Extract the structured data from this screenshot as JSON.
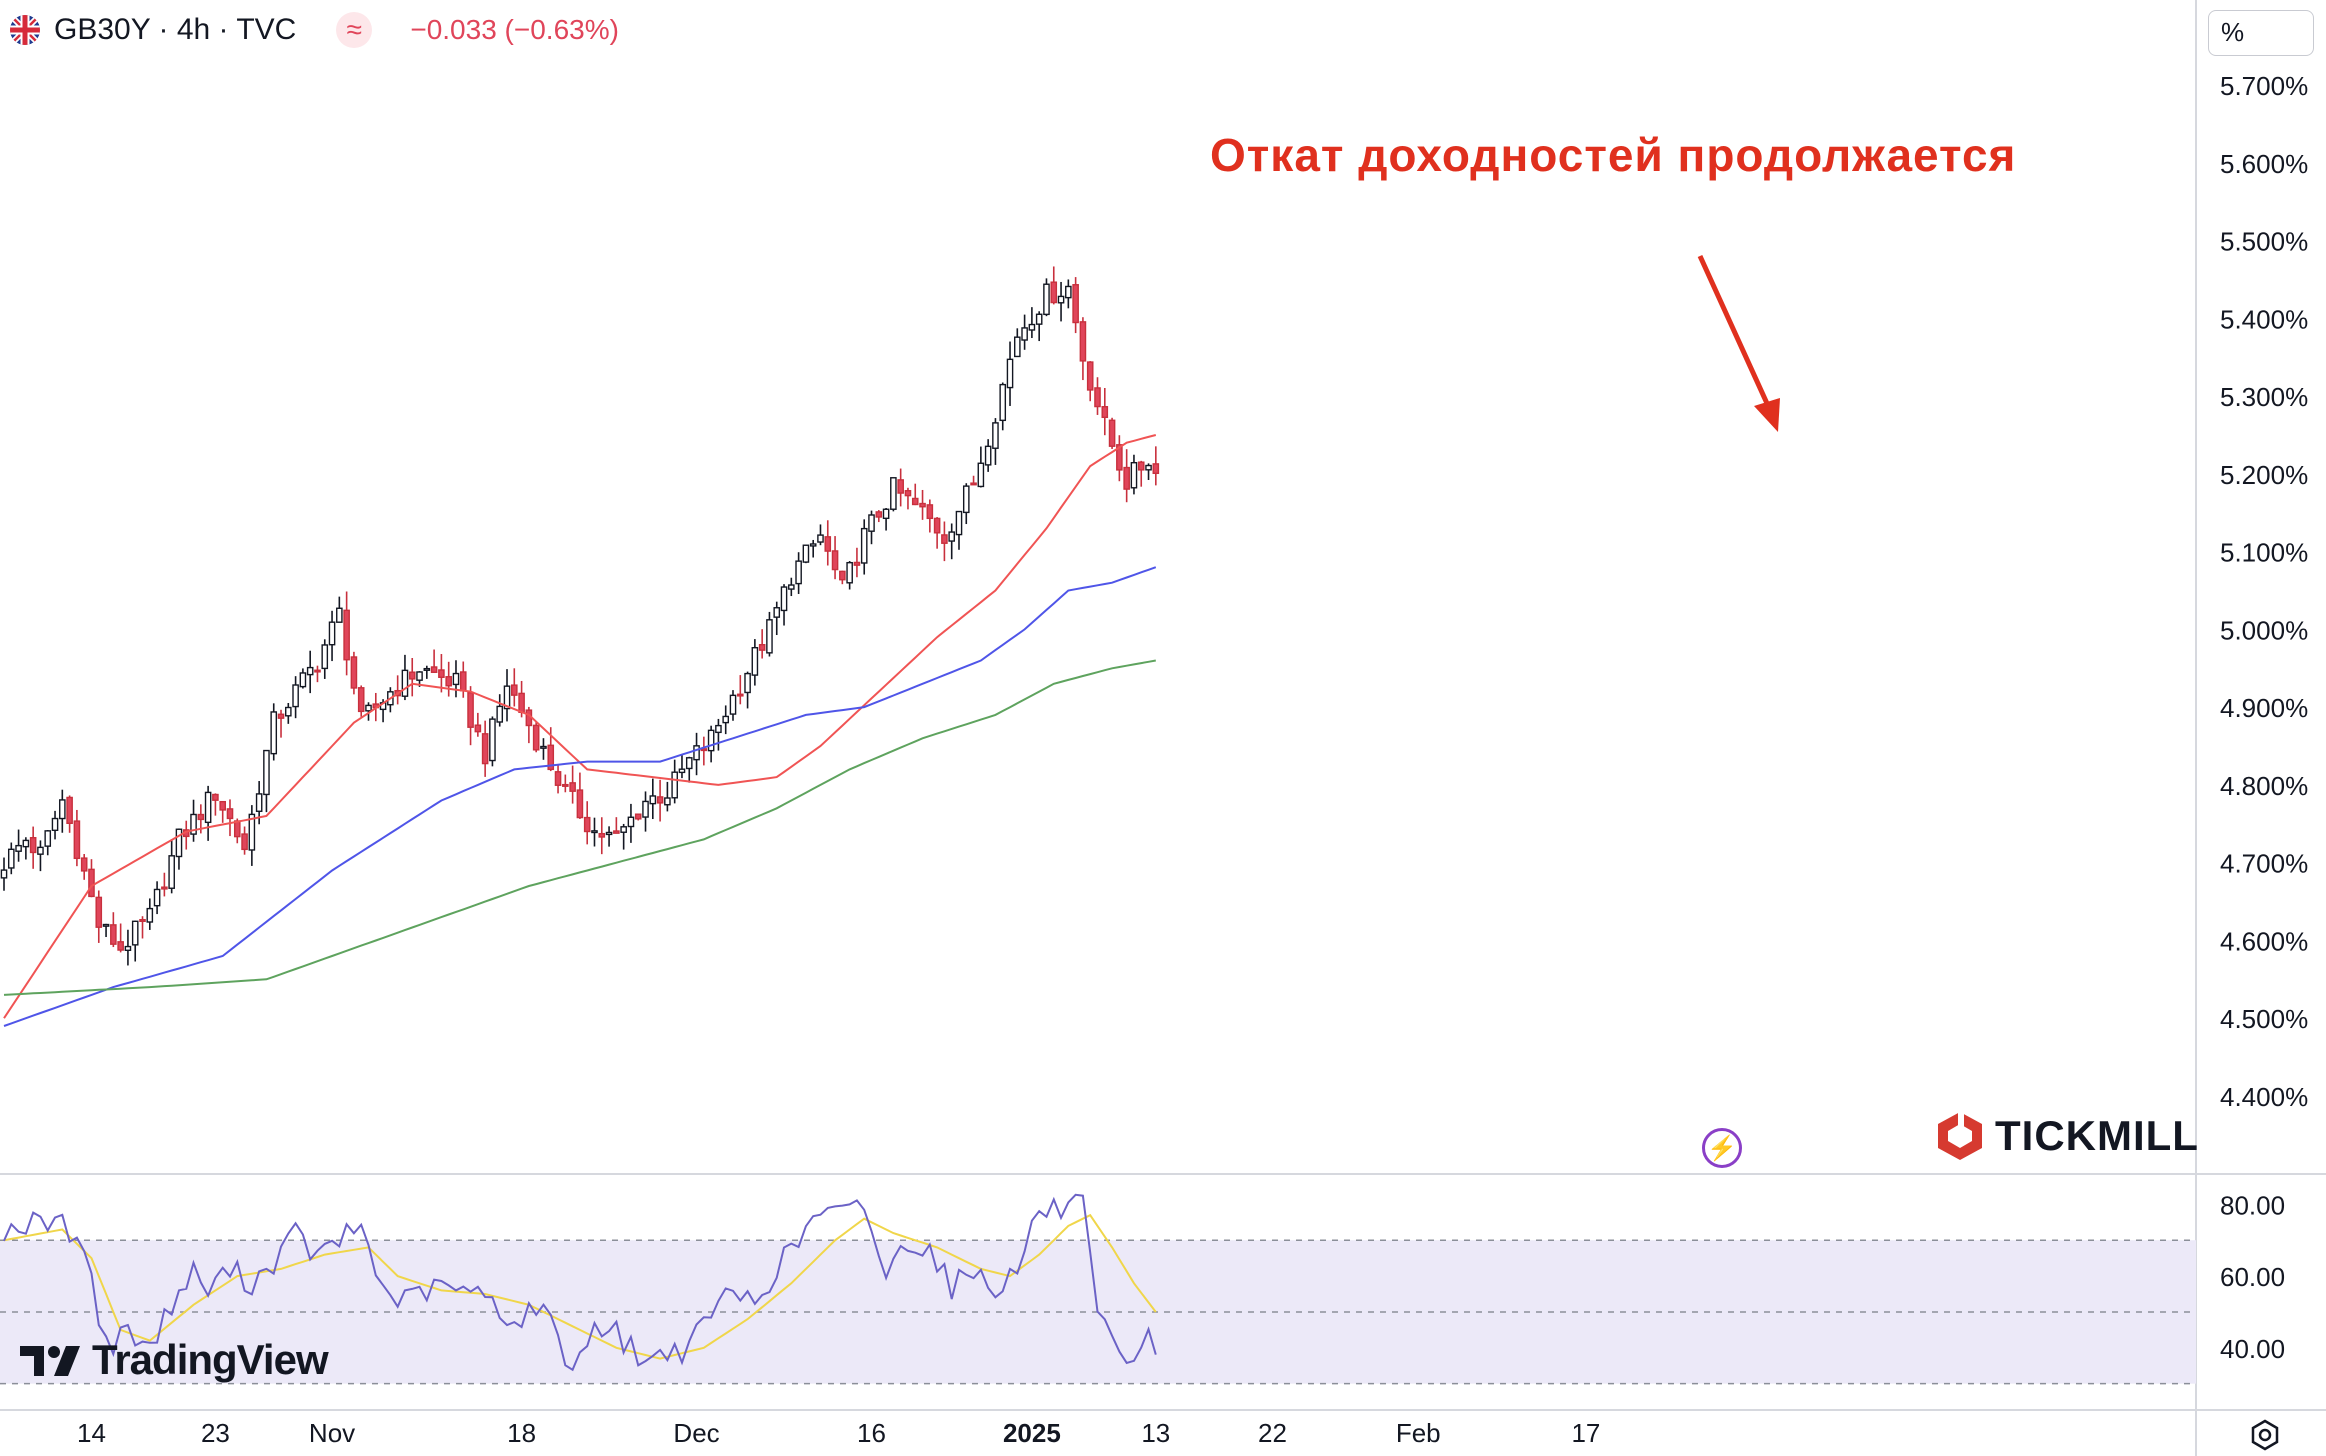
{
  "header": {
    "symbol": "GB30Y · 4h · TVC",
    "indicator_icon": "approx-icon",
    "change": "−0.033 (−0.63%)",
    "flag_icon": "uk-flag-icon",
    "down_color": "#e0455a",
    "up_color": "#131722"
  },
  "scale_button": "%",
  "annotation": "Откат доходностей продолжается",
  "watermarks": {
    "tradingview": "TradingView",
    "tickmill": "TICKMILL"
  },
  "lightning_icon": "lightning-icon",
  "settings_icon": "gear-icon",
  "chart_data": {
    "type": "candlestick",
    "title": "",
    "x_ticks": [
      "14",
      "23",
      "Nov",
      "18",
      "Dec",
      "16",
      "2025",
      "13",
      "22",
      "Feb",
      "17"
    ],
    "y_ticks": [
      "4.400%",
      "4.500%",
      "4.600%",
      "4.700%",
      "4.800%",
      "4.900%",
      "5.000%",
      "5.100%",
      "5.200%",
      "5.300%",
      "5.400%",
      "5.500%",
      "5.600%",
      "5.700%"
    ],
    "ylim": [
      4.32,
      5.75
    ],
    "close_path": [
      [
        0,
        4.7
      ],
      [
        3,
        4.73
      ],
      [
        5,
        4.71
      ],
      [
        8,
        4.78
      ],
      [
        10,
        4.72
      ],
      [
        13,
        4.62
      ],
      [
        16,
        4.59
      ],
      [
        20,
        4.63
      ],
      [
        24,
        4.73
      ],
      [
        29,
        4.79
      ],
      [
        33,
        4.72
      ],
      [
        37,
        4.88
      ],
      [
        40,
        4.92
      ],
      [
        43,
        4.96
      ],
      [
        46,
        5.02
      ],
      [
        49,
        4.88
      ],
      [
        53,
        4.92
      ],
      [
        57,
        4.95
      ],
      [
        62,
        4.93
      ],
      [
        66,
        4.84
      ],
      [
        69,
        4.93
      ],
      [
        73,
        4.86
      ],
      [
        77,
        4.79
      ],
      [
        81,
        4.74
      ],
      [
        84,
        4.73
      ],
      [
        88,
        4.78
      ],
      [
        91,
        4.79
      ],
      [
        94,
        4.83
      ],
      [
        97,
        4.86
      ],
      [
        101,
        4.93
      ],
      [
        105,
        5.0
      ],
      [
        108,
        5.07
      ],
      [
        112,
        5.12
      ],
      [
        115,
        5.05
      ],
      [
        118,
        5.12
      ],
      [
        122,
        5.18
      ],
      [
        126,
        5.15
      ],
      [
        129,
        5.12
      ],
      [
        133,
        5.19
      ],
      [
        136,
        5.28
      ],
      [
        139,
        5.38
      ],
      [
        143,
        5.43
      ],
      [
        146,
        5.44
      ],
      [
        148,
        5.35
      ],
      [
        151,
        5.26
      ],
      [
        154,
        5.19
      ],
      [
        157,
        5.22
      ],
      [
        158,
        5.2
      ]
    ],
    "candle_count": 159,
    "last_candle_index": 158,
    "moving_averages": [
      {
        "color": "#f05454",
        "values": [
          [
            0,
            4.5
          ],
          [
            12,
            4.67
          ],
          [
            25,
            4.74
          ],
          [
            36,
            4.76
          ],
          [
            48,
            4.88
          ],
          [
            56,
            4.93
          ],
          [
            64,
            4.92
          ],
          [
            72,
            4.89
          ],
          [
            80,
            4.82
          ],
          [
            89,
            4.81
          ],
          [
            98,
            4.8
          ],
          [
            106,
            4.81
          ],
          [
            112,
            4.85
          ],
          [
            120,
            4.92
          ],
          [
            128,
            4.99
          ],
          [
            136,
            5.05
          ],
          [
            143,
            5.13
          ],
          [
            149,
            5.21
          ],
          [
            154,
            5.24
          ],
          [
            158,
            5.25
          ]
        ]
      },
      {
        "color": "#4f55e8",
        "values": [
          [
            0,
            4.49
          ],
          [
            15,
            4.54
          ],
          [
            30,
            4.58
          ],
          [
            45,
            4.69
          ],
          [
            60,
            4.78
          ],
          [
            70,
            4.82
          ],
          [
            80,
            4.83
          ],
          [
            90,
            4.83
          ],
          [
            100,
            4.86
          ],
          [
            110,
            4.89
          ],
          [
            118,
            4.9
          ],
          [
            126,
            4.93
          ],
          [
            134,
            4.96
          ],
          [
            140,
            5.0
          ],
          [
            146,
            5.05
          ],
          [
            152,
            5.06
          ],
          [
            158,
            5.08
          ]
        ]
      },
      {
        "color": "#5ea35e",
        "values": [
          [
            0,
            4.53
          ],
          [
            20,
            4.54
          ],
          [
            36,
            4.55
          ],
          [
            48,
            4.59
          ],
          [
            60,
            4.63
          ],
          [
            72,
            4.67
          ],
          [
            84,
            4.7
          ],
          [
            96,
            4.73
          ],
          [
            106,
            4.77
          ],
          [
            116,
            4.82
          ],
          [
            126,
            4.86
          ],
          [
            136,
            4.89
          ],
          [
            144,
            4.93
          ],
          [
            152,
            4.95
          ],
          [
            158,
            4.96
          ]
        ]
      }
    ],
    "rsi": {
      "y_ticks": [
        "40.00",
        "60.00",
        "80.00"
      ],
      "ylim": [
        28,
        85
      ],
      "bands": [
        30,
        50,
        70
      ],
      "rsi_color": "#6b62c6",
      "signal_color": "#f0d64a",
      "band_fill": "#ece9f8",
      "rsi_path": [
        [
          0,
          73
        ],
        [
          5,
          75
        ],
        [
          8,
          74
        ],
        [
          11,
          70
        ],
        [
          13,
          47
        ],
        [
          15,
          40
        ],
        [
          17,
          46
        ],
        [
          20,
          40
        ],
        [
          23,
          52
        ],
        [
          26,
          61
        ],
        [
          28,
          56
        ],
        [
          31,
          62
        ],
        [
          34,
          58
        ],
        [
          37,
          64
        ],
        [
          40,
          72
        ],
        [
          43,
          65
        ],
        [
          46,
          70
        ],
        [
          49,
          74
        ],
        [
          52,
          56
        ],
        [
          55,
          53
        ],
        [
          58,
          56
        ],
        [
          61,
          57
        ],
        [
          64,
          55
        ],
        [
          67,
          54
        ],
        [
          70,
          46
        ],
        [
          73,
          52
        ],
        [
          76,
          44
        ],
        [
          78,
          33
        ],
        [
          81,
          47
        ],
        [
          84,
          44
        ],
        [
          87,
          38
        ],
        [
          89,
          36
        ],
        [
          91,
          40
        ],
        [
          94,
          39
        ],
        [
          97,
          51
        ],
        [
          100,
          55
        ],
        [
          103,
          53
        ],
        [
          106,
          62
        ],
        [
          109,
          70
        ],
        [
          112,
          78
        ],
        [
          115,
          77
        ],
        [
          118,
          80
        ],
        [
          121,
          60
        ],
        [
          124,
          70
        ],
        [
          127,
          68
        ],
        [
          130,
          57
        ],
        [
          133,
          62
        ],
        [
          136,
          57
        ],
        [
          139,
          61
        ],
        [
          141,
          75
        ],
        [
          143,
          78
        ],
        [
          146,
          79
        ],
        [
          148,
          80
        ],
        [
          150,
          47
        ],
        [
          152,
          42
        ],
        [
          154,
          33
        ],
        [
          156,
          37
        ],
        [
          157,
          44
        ],
        [
          158,
          40
        ]
      ],
      "signal_path": [
        [
          0,
          70
        ],
        [
          8,
          73
        ],
        [
          12,
          65
        ],
        [
          16,
          45
        ],
        [
          20,
          42
        ],
        [
          26,
          52
        ],
        [
          32,
          60
        ],
        [
          38,
          62
        ],
        [
          44,
          66
        ],
        [
          50,
          68
        ],
        [
          54,
          60
        ],
        [
          60,
          56
        ],
        [
          66,
          55
        ],
        [
          72,
          52
        ],
        [
          78,
          46
        ],
        [
          84,
          40
        ],
        [
          90,
          37
        ],
        [
          96,
          40
        ],
        [
          102,
          48
        ],
        [
          108,
          58
        ],
        [
          114,
          70
        ],
        [
          118,
          76
        ],
        [
          122,
          72
        ],
        [
          128,
          68
        ],
        [
          134,
          62
        ],
        [
          138,
          60
        ],
        [
          142,
          66
        ],
        [
          146,
          74
        ],
        [
          149,
          77
        ],
        [
          152,
          68
        ],
        [
          155,
          58
        ],
        [
          158,
          50
        ]
      ]
    }
  }
}
